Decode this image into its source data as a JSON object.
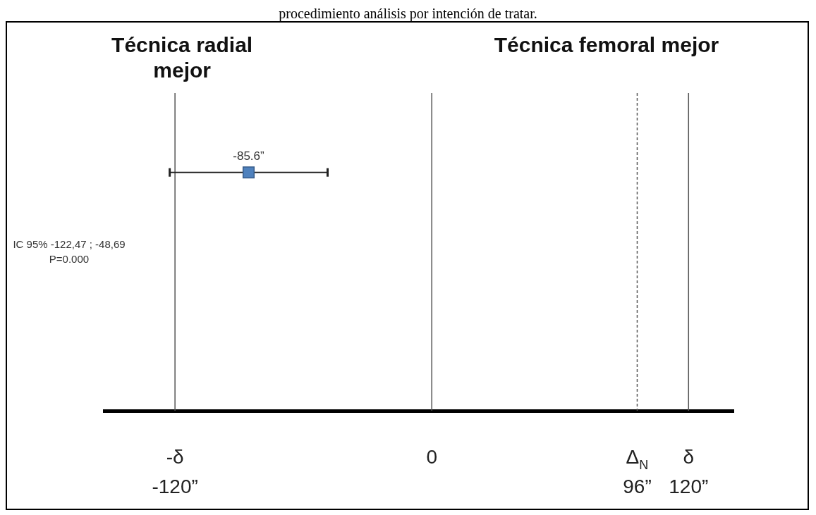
{
  "chart_data": {
    "type": "scatter",
    "title": "procedimiento análisis por intención de tratar.",
    "orientation": "horizontal",
    "categories": [
      null
    ],
    "values": [
      -85.6
    ],
    "errors": [
      [
        -122.47,
        -48.69
      ]
    ],
    "value_labels": [
      "-85.6”"
    ],
    "color": "#4f81bd",
    "marker": "square",
    "xlim": [
      -153,
      141
    ],
    "xticks": [
      {
        "value": -120,
        "label": "-δ\n-120”"
      },
      {
        "value": 0,
        "label": "0"
      },
      {
        "value": 96,
        "label": "Δ$_{N}$\n96”"
      },
      {
        "value": 120,
        "label": "δ\n120”"
      }
    ],
    "ref_lines": [
      {
        "axis": "x",
        "value": -120,
        "line_style": "solid"
      },
      {
        "axis": "x",
        "value": 0,
        "line_style": "solid"
      },
      {
        "axis": "x",
        "value": 96,
        "line_style": "dashed"
      },
      {
        "axis": "x",
        "value": 120,
        "line_style": "solid"
      }
    ],
    "annotations": [
      "Técnica radial mejor",
      "Técnica femoral mejor",
      "IC 95% -122,47 ; -48,69\nP=0.000"
    ],
    "grid": false,
    "legend": false
  }
}
